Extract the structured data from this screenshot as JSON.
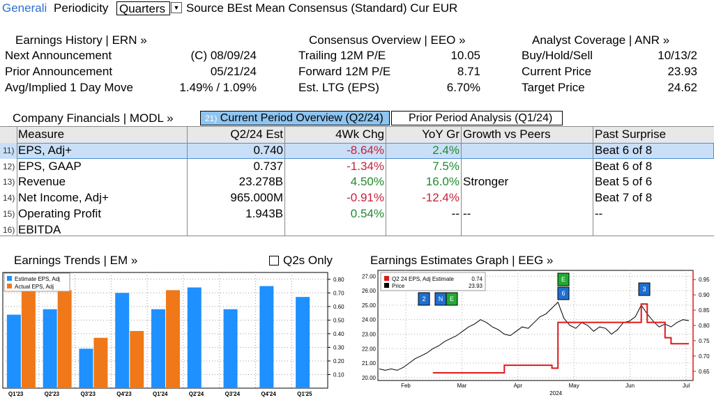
{
  "topbar": {
    "ticker": "Generali",
    "periodicity_label": "Periodicity",
    "periodicity_value": "Quarters",
    "source_label": "Source BEst Mean Consensus (Standard) Cur EUR"
  },
  "earnings_history": {
    "title": "Earnings History | ERN »",
    "rows": [
      {
        "label": "Next Announcement",
        "value": "(C)  08/09/24"
      },
      {
        "label": "Prior Announcement",
        "value": "05/21/24"
      },
      {
        "label": "Avg/Implied 1 Day Move",
        "value": "1.49% / 1.09%"
      }
    ]
  },
  "consensus_overview": {
    "title": "Consensus Overview | EEO »",
    "rows": [
      {
        "label": "Trailing 12M P/E",
        "value": "10.05"
      },
      {
        "label": "Forward 12M P/E",
        "value": "8.71"
      },
      {
        "label": "Est. LTG (EPS)",
        "value": "6.70%"
      }
    ]
  },
  "analyst_coverage": {
    "title": "Analyst Coverage | ANR »",
    "rows": [
      {
        "label": "Buy/Hold/Sell",
        "value": "10/13/2"
      },
      {
        "label": "Current Price",
        "value": "23.93"
      },
      {
        "label": "Target Price",
        "value": "24.62"
      }
    ]
  },
  "financials": {
    "title": "Company Financials | MODL »",
    "tab_current_num": "21)",
    "tab_current": "Current Period Overview (Q2/24)",
    "tab_prior": "Prior Period Analysis (Q1/24)",
    "headers": [
      "Measure",
      "Q2/24 Est",
      "4Wk Chg",
      "YoY Gr",
      "Growth vs Peers",
      "Past Surprise"
    ],
    "rows": [
      {
        "num": "11)",
        "measure": "EPS, Adj+",
        "est": "0.740",
        "chg": "-8.64%",
        "yoy": "2.4%",
        "peers": "",
        "surprise": "Beat 6 of 8"
      },
      {
        "num": "12)",
        "measure": "EPS, GAAP",
        "est": "0.737",
        "chg": "-1.34%",
        "yoy": "7.5%",
        "peers": "",
        "surprise": "Beat 6 of 8"
      },
      {
        "num": "13)",
        "measure": "Revenue",
        "est": "23.278B",
        "chg": "4.50%",
        "yoy": "16.0%",
        "peers": "Stronger",
        "surprise": "Beat 5 of 6"
      },
      {
        "num": "14)",
        "measure": "Net Income, Adj+",
        "est": "965.000M",
        "chg": "-0.91%",
        "yoy": "-12.4%",
        "peers": "",
        "surprise": "Beat 7 of 8"
      },
      {
        "num": "15)",
        "measure": "Operating Profit",
        "est": "1.943B",
        "chg": "0.54%",
        "yoy": "--",
        "peers": "--",
        "surprise": "--"
      },
      {
        "num": "16)",
        "measure": "EBITDA",
        "est": "",
        "chg": "",
        "yoy": "",
        "peers": "",
        "surprise": ""
      }
    ]
  },
  "trends": {
    "title": "Earnings Trends | EM »",
    "checkbox_label": "Q2s Only"
  },
  "estimates_graph": {
    "title": "Earnings Estimates Graph | EEG »",
    "legend_est_label": "Q2 24 EPS, Adj Estimate",
    "legend_est_value": "0.74",
    "legend_price_label": "Price",
    "legend_price_value": "23.93",
    "year_label": "2024"
  },
  "colors": {
    "estimate_blue": "#1e90ff",
    "actual_orange": "#f07818",
    "highlight": "#c9dff7",
    "tab_active": "#8fc4ef",
    "red_line": "#e01818"
  },
  "chart_data": [
    {
      "type": "bar",
      "categories": [
        "Q1'23",
        "Q2'23",
        "Q3'23",
        "Q4'23",
        "Q1'24",
        "Q2'24",
        "Q3'24",
        "Q4'24",
        "Q1'25"
      ],
      "series": [
        {
          "name": "Estimate EPS, Adj",
          "values": [
            0.54,
            0.58,
            0.29,
            0.7,
            0.58,
            0.74,
            0.58,
            0.75,
            0.67
          ]
        },
        {
          "name": "Actual EPS, Adj",
          "values": [
            0.72,
            0.72,
            0.37,
            0.42,
            0.72,
            null,
            null,
            null,
            null
          ]
        }
      ],
      "yticks": [
        "0.10",
        "0.20",
        "0.30",
        "0.40",
        "0.50",
        "0.60",
        "0.70",
        "0.80"
      ],
      "ylim": [
        0,
        0.85
      ],
      "legend": "top-left"
    },
    {
      "type": "line",
      "x_labels": [
        "Feb",
        "Mar",
        "Apr",
        "May",
        "Jun",
        "Jul"
      ],
      "left_yticks": [
        "20.00",
        "21.00",
        "22.00",
        "23.00",
        "24.00",
        "25.00",
        "26.00",
        "27.00"
      ],
      "left_ylim": [
        19.8,
        27.4
      ],
      "right_yticks": [
        "0.65",
        "0.70",
        "0.75",
        "0.80",
        "0.85",
        "0.90",
        "0.95"
      ],
      "right_ylim": [
        0.62,
        0.98
      ],
      "series": [
        {
          "name": "Price",
          "axis": "left",
          "values": [
            20.6,
            20.5,
            20.6,
            20.5,
            20.7,
            21.0,
            21.3,
            21.5,
            21.7,
            22.0,
            22.2,
            22.5,
            22.7,
            22.9,
            23.2,
            23.5,
            23.7,
            24.0,
            23.8,
            23.5,
            23.3,
            23.0,
            22.9,
            23.2,
            23.5,
            23.4,
            23.8,
            24.2,
            24.4,
            24.8,
            25.2,
            24.1,
            23.6,
            23.4,
            23.8,
            23.6,
            23.2,
            23.5,
            23.4,
            23.0,
            23.3,
            23.8,
            23.9,
            24.2,
            25.0,
            24.4,
            23.9,
            23.5,
            23.7,
            23.5,
            23.8,
            24.0,
            23.93
          ]
        },
        {
          "name": "Q2 24 EPS, Adj Estimate",
          "axis": "right",
          "values": [
            null,
            null,
            null,
            null,
            null,
            null,
            null,
            null,
            null,
            0.645,
            0.645,
            0.645,
            0.645,
            0.645,
            0.645,
            0.645,
            0.645,
            0.645,
            0.645,
            0.645,
            0.645,
            0.67,
            0.67,
            0.67,
            0.67,
            0.67,
            0.67,
            0.67,
            0.67,
            0.66,
            0.81,
            0.81,
            0.81,
            0.81,
            0.81,
            0.81,
            0.81,
            0.81,
            0.81,
            0.81,
            0.81,
            0.81,
            0.81,
            0.81,
            0.87,
            0.81,
            0.81,
            0.81,
            0.76,
            0.74,
            0.74,
            0.74,
            0.74
          ]
        }
      ],
      "events": [
        {
          "label": "2"
        },
        {
          "label": "N"
        },
        {
          "label": "E"
        },
        {
          "label": "E"
        },
        {
          "label": "6"
        },
        {
          "label": "3"
        }
      ]
    }
  ]
}
